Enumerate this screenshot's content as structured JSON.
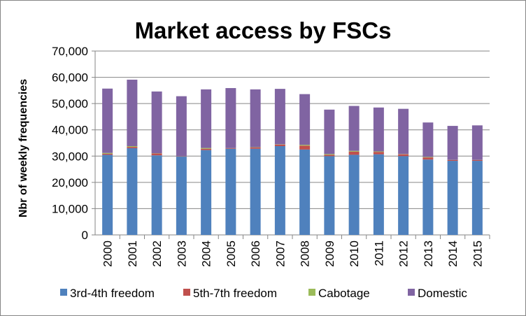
{
  "chart_data": {
    "type": "bar",
    "stacked": true,
    "title": "Market access by FSCs",
    "xlabel": "",
    "ylabel": "Nbr of weekly frequencies",
    "ylim": [
      0,
      70000
    ],
    "yticks": [
      "0",
      "10,000",
      "20,000",
      "30,000",
      "40,000",
      "50,000",
      "60,000",
      "70,000"
    ],
    "ytick_values": [
      0,
      10000,
      20000,
      30000,
      40000,
      50000,
      60000,
      70000
    ],
    "grid": true,
    "legend_position": "bottom",
    "categories": [
      "2000",
      "2001",
      "2002",
      "2003",
      "2004",
      "2005",
      "2006",
      "2007",
      "2008",
      "2009",
      "2010",
      "2011",
      "2012",
      "2013",
      "2014",
      "2015"
    ],
    "series": [
      {
        "name": "3rd-4th freedom",
        "color": "#4F81BD",
        "values": [
          30500,
          33000,
          30300,
          29800,
          32300,
          32800,
          32800,
          33800,
          32500,
          30000,
          30500,
          30700,
          30000,
          28700,
          28200,
          28200
        ]
      },
      {
        "name": "5th-7th freedom",
        "color": "#C0504D",
        "values": [
          400,
          500,
          700,
          100,
          500,
          200,
          500,
          600,
          1500,
          500,
          1200,
          900,
          700,
          800,
          300,
          300
        ]
      },
      {
        "name": "Cabotage",
        "color": "#9BBB59",
        "values": [
          300,
          300,
          100,
          50,
          300,
          50,
          100,
          100,
          300,
          300,
          300,
          200,
          100,
          200,
          50,
          50
        ]
      },
      {
        "name": "Domestic",
        "color": "#8064A2",
        "values": [
          24500,
          25300,
          23500,
          22850,
          22300,
          22850,
          22000,
          21100,
          19300,
          16900,
          17100,
          16700,
          17200,
          13100,
          12950,
          13150
        ]
      }
    ]
  }
}
